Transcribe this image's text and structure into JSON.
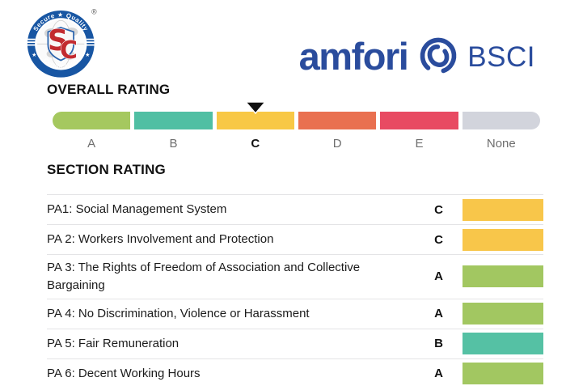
{
  "header": {
    "sqc_logo": {
      "top_text": "Secure ★ Quality",
      "bottom_text": "Certification",
      "monogram_s": "S",
      "monogram_c": "C",
      "registered_mark": "®",
      "ring_color": "#1856a3",
      "monogram_color": "#c22a2f"
    },
    "amfori_logo": {
      "wordmark": "amfori",
      "suffix": "BSCI",
      "color": "#2a4c9d"
    }
  },
  "overall": {
    "title": "OVERALL RATING",
    "selected": "C",
    "scale": [
      {
        "label": "A",
        "color": "#a5c85f"
      },
      {
        "label": "B",
        "color": "#50bfa3"
      },
      {
        "label": "C",
        "color": "#f8c846"
      },
      {
        "label": "D",
        "color": "#e97050"
      },
      {
        "label": "E",
        "color": "#e84a62"
      },
      {
        "label": "None",
        "color": "#d2d4dc"
      }
    ]
  },
  "sections": {
    "title": "SECTION RATING",
    "rows": [
      {
        "label": "PA1: Social Management System",
        "rating": "C",
        "color": "#f8c64a"
      },
      {
        "label": "PA 2: Workers Involvement and Protection",
        "rating": "C",
        "color": "#f8c64a"
      },
      {
        "label": "PA 3: The Rights of Freedom of Association and Collective Bargaining",
        "rating": "A",
        "color": "#a2c761"
      },
      {
        "label": "PA 4: No Discrimination, Violence or Harassment",
        "rating": "A",
        "color": "#a2c761"
      },
      {
        "label": "PA 5: Fair Remuneration",
        "rating": "B",
        "color": "#55c1a4"
      },
      {
        "label": "PA 6: Decent Working Hours",
        "rating": "A",
        "color": "#a2c761"
      }
    ]
  }
}
